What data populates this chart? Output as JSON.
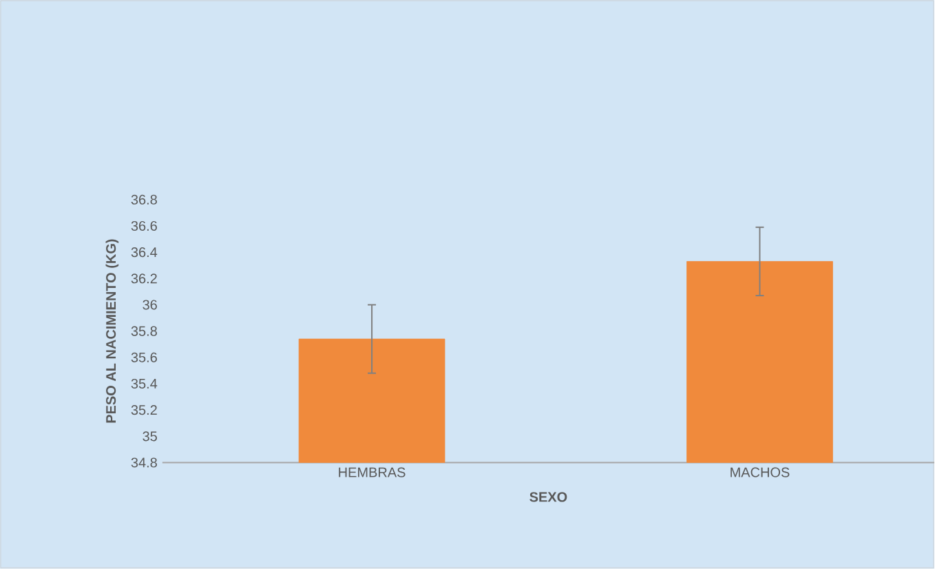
{
  "chart_data": {
    "type": "bar",
    "categories": [
      "HEMBRAS",
      "MACHOS"
    ],
    "values": [
      35.74,
      36.33
    ],
    "errors": [
      0.26,
      0.26
    ],
    "color": "#f08a3c",
    "xlabel": "SEXO",
    "ylabel": "PESO AL NACIMIENTO (KG)",
    "ylim": [
      34.8,
      36.8
    ],
    "yticks": [
      34.8,
      35,
      35.2,
      35.4,
      35.6,
      35.8,
      36,
      36.2,
      36.4,
      36.6,
      36.8
    ]
  }
}
